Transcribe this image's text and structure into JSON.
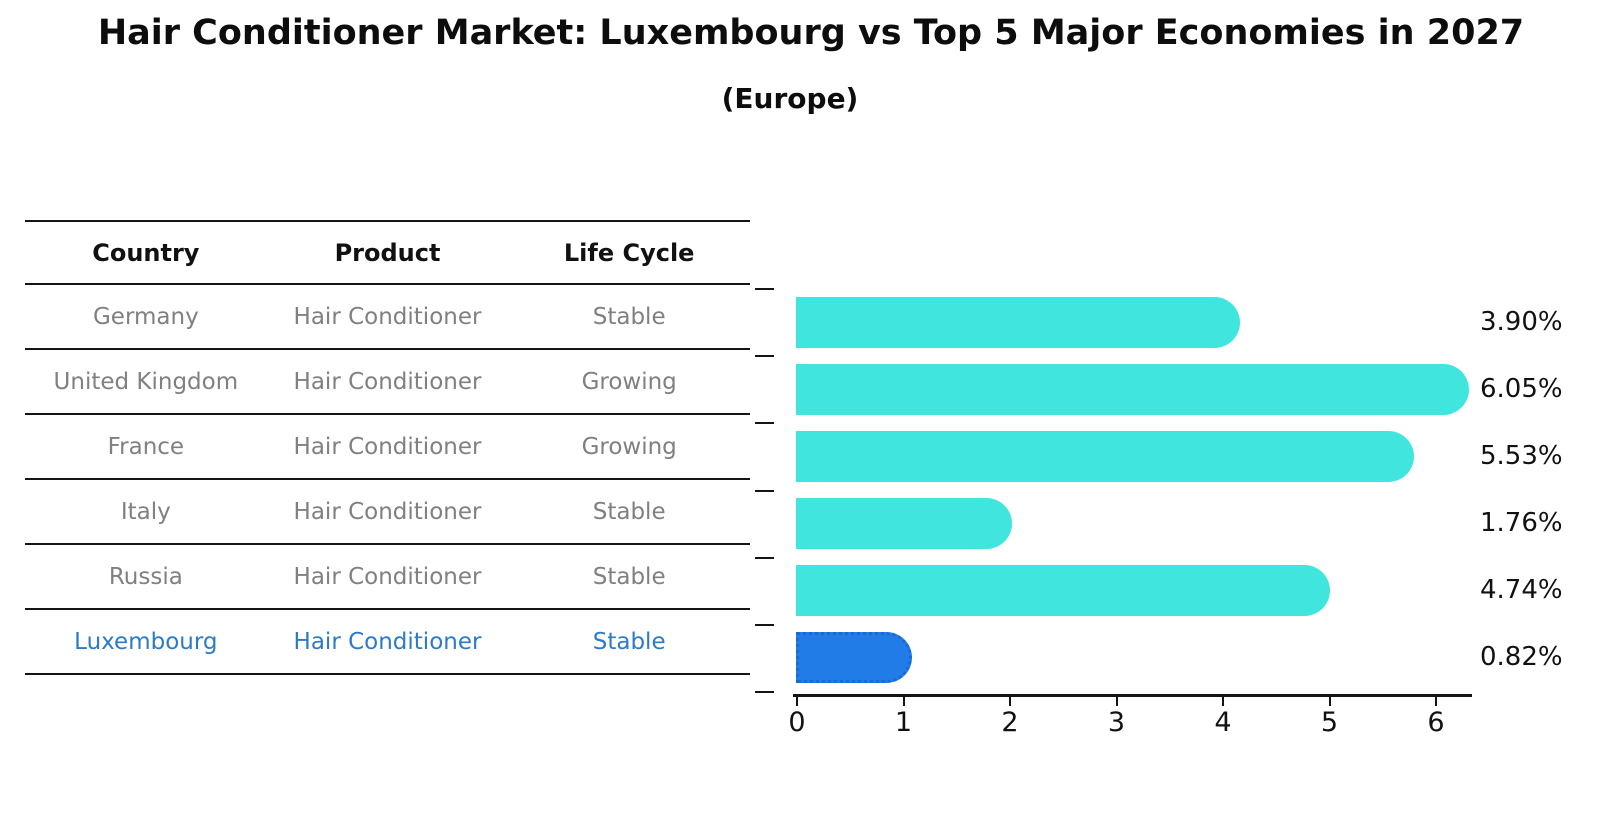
{
  "header": {
    "title": "Hair Conditioner Market: Luxembourg vs Top 5 Major Economies in 2027",
    "subtitle": "(Europe)"
  },
  "table": {
    "columns": [
      "Country",
      "Product",
      "Life Cycle"
    ],
    "rows": [
      {
        "country": "Germany",
        "product": "Hair Conditioner",
        "life_cycle": "Stable",
        "highlight": false
      },
      {
        "country": "United Kingdom",
        "product": "Hair Conditioner",
        "life_cycle": "Growing",
        "highlight": false
      },
      {
        "country": "France",
        "product": "Hair Conditioner",
        "life_cycle": "Growing",
        "highlight": false
      },
      {
        "country": "Italy",
        "product": "Hair Conditioner",
        "life_cycle": "Stable",
        "highlight": false
      },
      {
        "country": "Russia",
        "product": "Hair Conditioner",
        "life_cycle": "Stable",
        "highlight": true,
        "_note": ""
      },
      {
        "country": "Luxembourg",
        "product": "Hair Conditioner",
        "life_cycle": "Stable",
        "highlight": true
      }
    ]
  },
  "chart_data": {
    "type": "bar",
    "orientation": "horizontal",
    "title": "Hair Conditioner Market: Luxembourg vs Top 5 Major Economies in 2027",
    "subtitle": "(Europe)",
    "categories": [
      "Germany",
      "United Kingdom",
      "France",
      "Italy",
      "Russia",
      "Luxembourg"
    ],
    "values": [
      3.9,
      6.05,
      5.53,
      1.76,
      4.74,
      0.82
    ],
    "value_labels": [
      "3.90%",
      "6.05%",
      "5.53%",
      "1.76%",
      "4.74%",
      "0.82%"
    ],
    "x_ticks": [
      0,
      1,
      2,
      3,
      4,
      5,
      6
    ],
    "xlim": [
      0,
      6.35
    ],
    "xlabel": "",
    "ylabel": "",
    "grid": false,
    "legend": "none",
    "highlight_index": 5
  },
  "colors": {
    "bar": "#40E5DD",
    "highlight_bar": "#217CE8",
    "highlight_border": "#1A6AD4",
    "highlight_text": "#2B7BC9",
    "cell_text": "#808080",
    "header_text": "#111111",
    "axis": "#151515"
  }
}
